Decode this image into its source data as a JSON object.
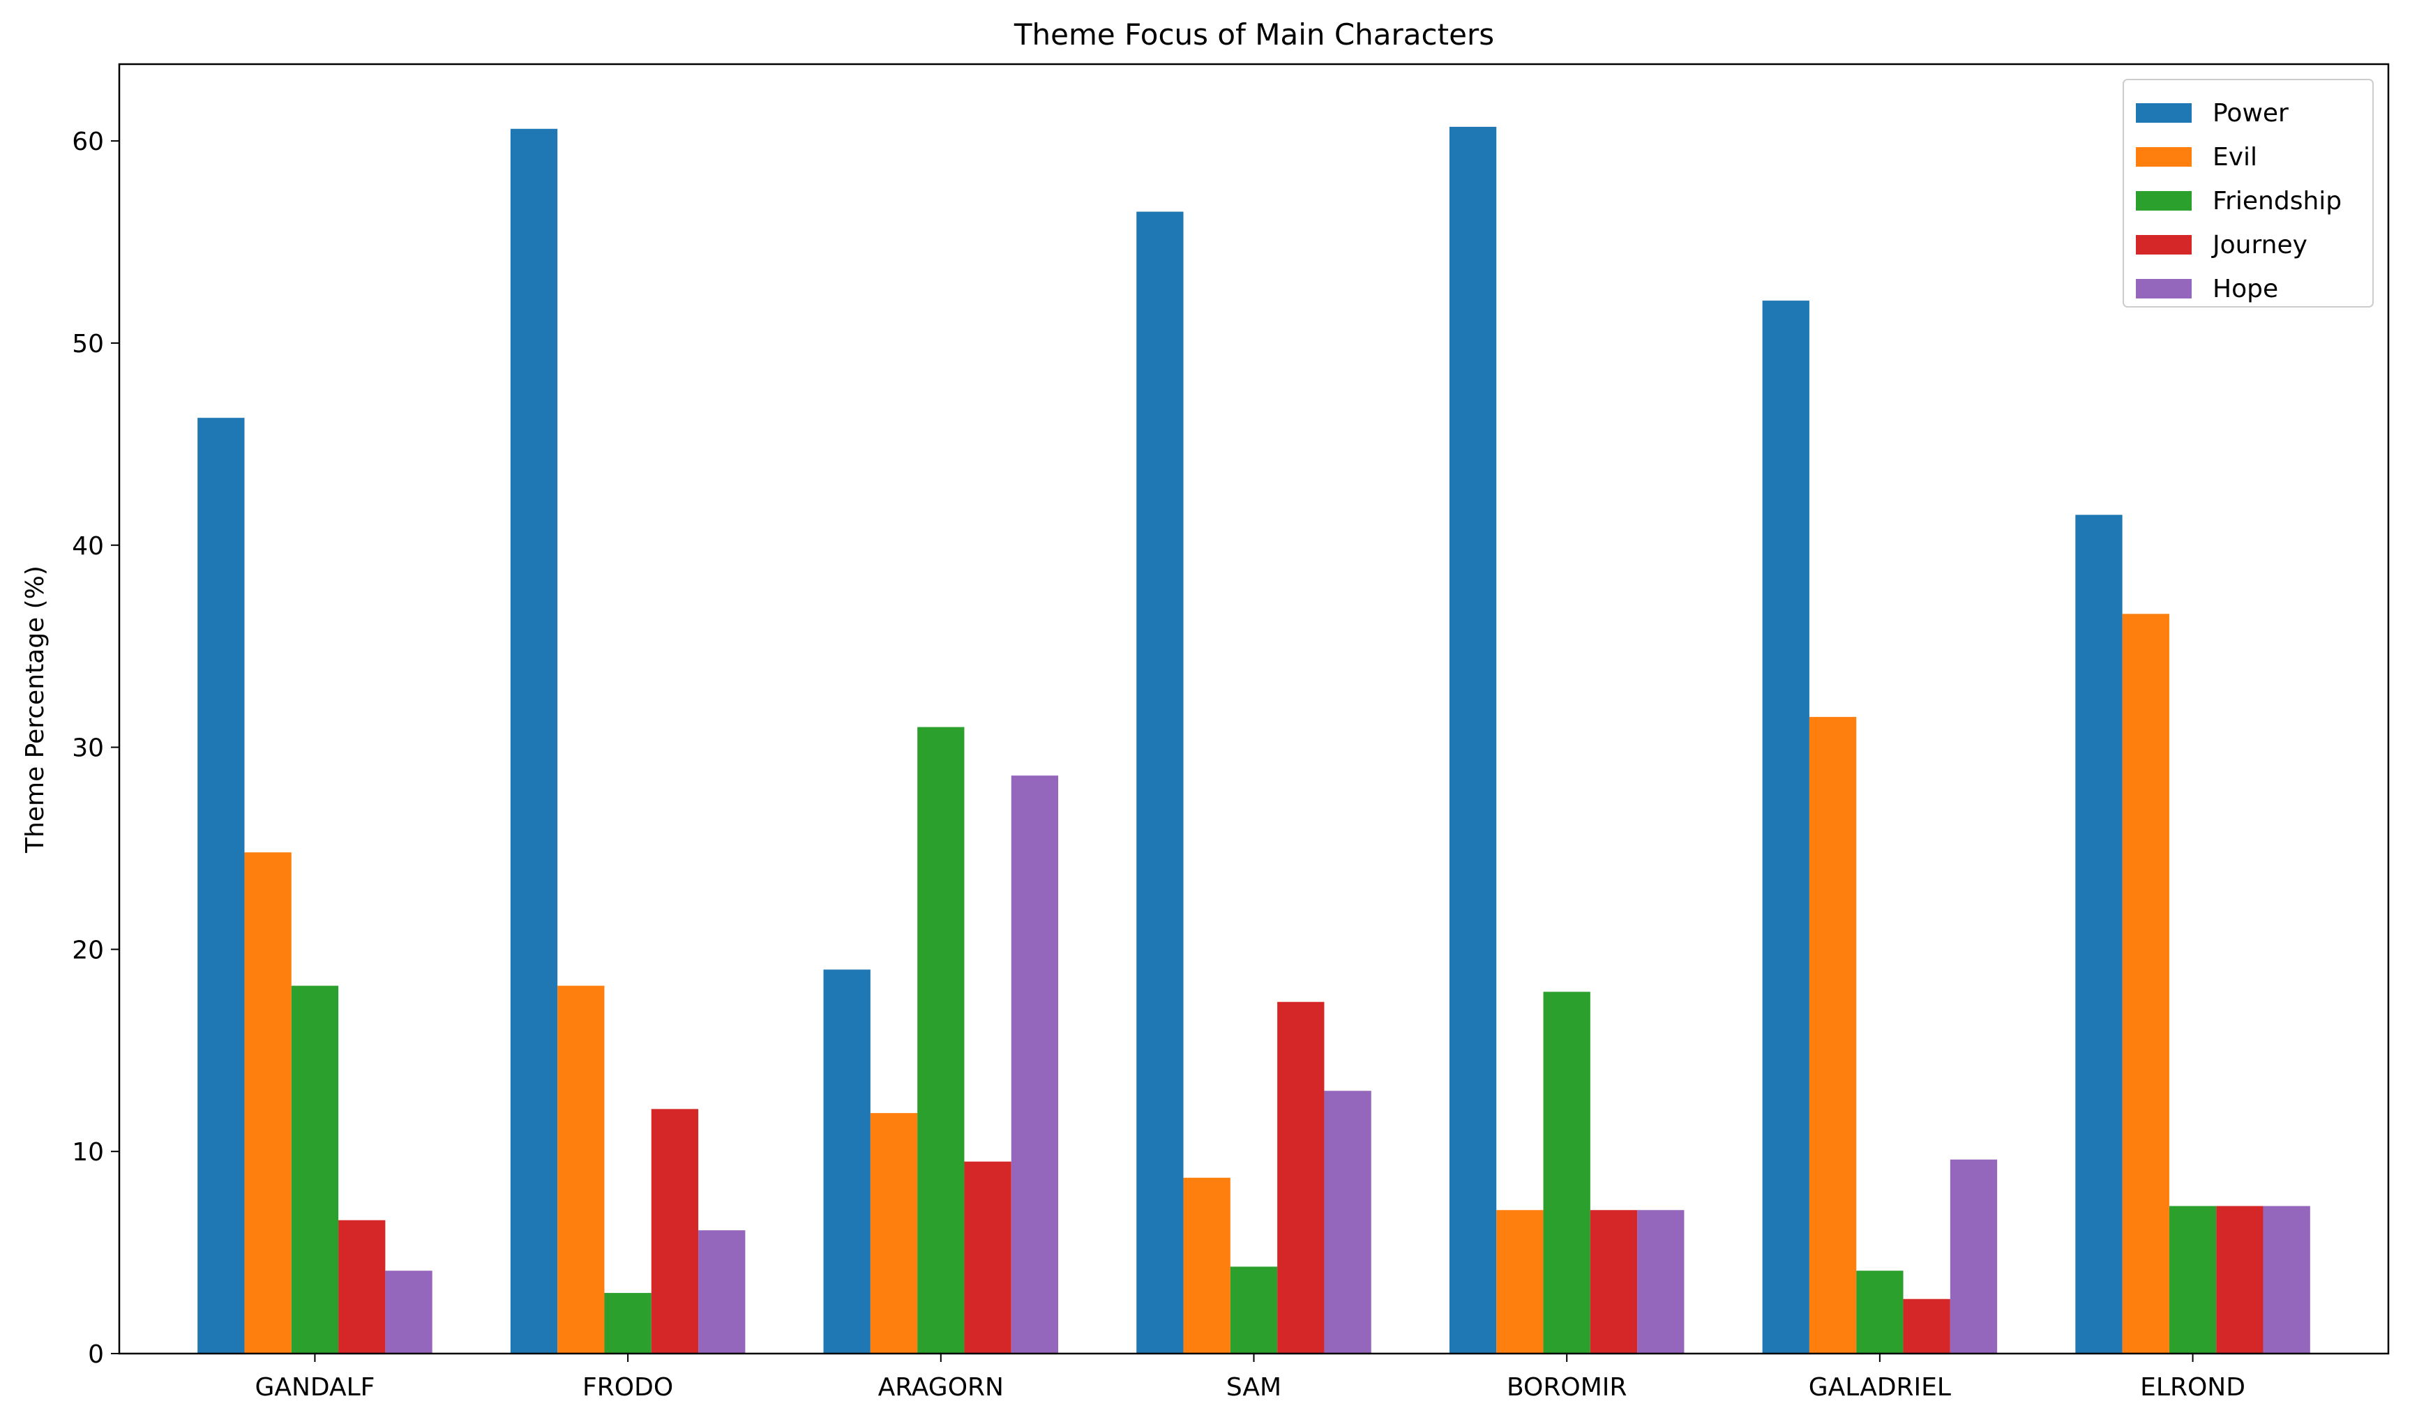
{
  "chart_data": {
    "type": "bar",
    "title": "Theme Focus of Main Characters",
    "xlabel": "",
    "ylabel": "Theme Percentage (%)",
    "categories": [
      "GANDALF",
      "FRODO",
      "ARAGORN",
      "SAM",
      "BOROMIR",
      "GALADRIEL",
      "ELROND"
    ],
    "ylim": [
      0,
      63.8
    ],
    "yticks": [
      0,
      10,
      20,
      30,
      40,
      50,
      60
    ],
    "grid": false,
    "legend_position": "top-right",
    "series": [
      {
        "name": "Power",
        "color": "#1f77b4",
        "values": [
          46.3,
          60.6,
          19.0,
          56.5,
          60.7,
          52.1,
          41.5
        ]
      },
      {
        "name": "Evil",
        "color": "#ff7f0e",
        "values": [
          24.8,
          18.2,
          11.9,
          8.7,
          7.1,
          31.5,
          36.6
        ]
      },
      {
        "name": "Friendship",
        "color": "#2ca02c",
        "values": [
          18.2,
          3.0,
          31.0,
          4.3,
          17.9,
          4.1,
          7.3
        ]
      },
      {
        "name": "Journey",
        "color": "#d62728",
        "values": [
          6.6,
          12.1,
          9.5,
          17.4,
          7.1,
          2.7,
          7.3
        ]
      },
      {
        "name": "Hope",
        "color": "#9467bd",
        "values": [
          4.1,
          6.1,
          28.6,
          13.0,
          7.1,
          9.6,
          7.3
        ]
      }
    ]
  }
}
